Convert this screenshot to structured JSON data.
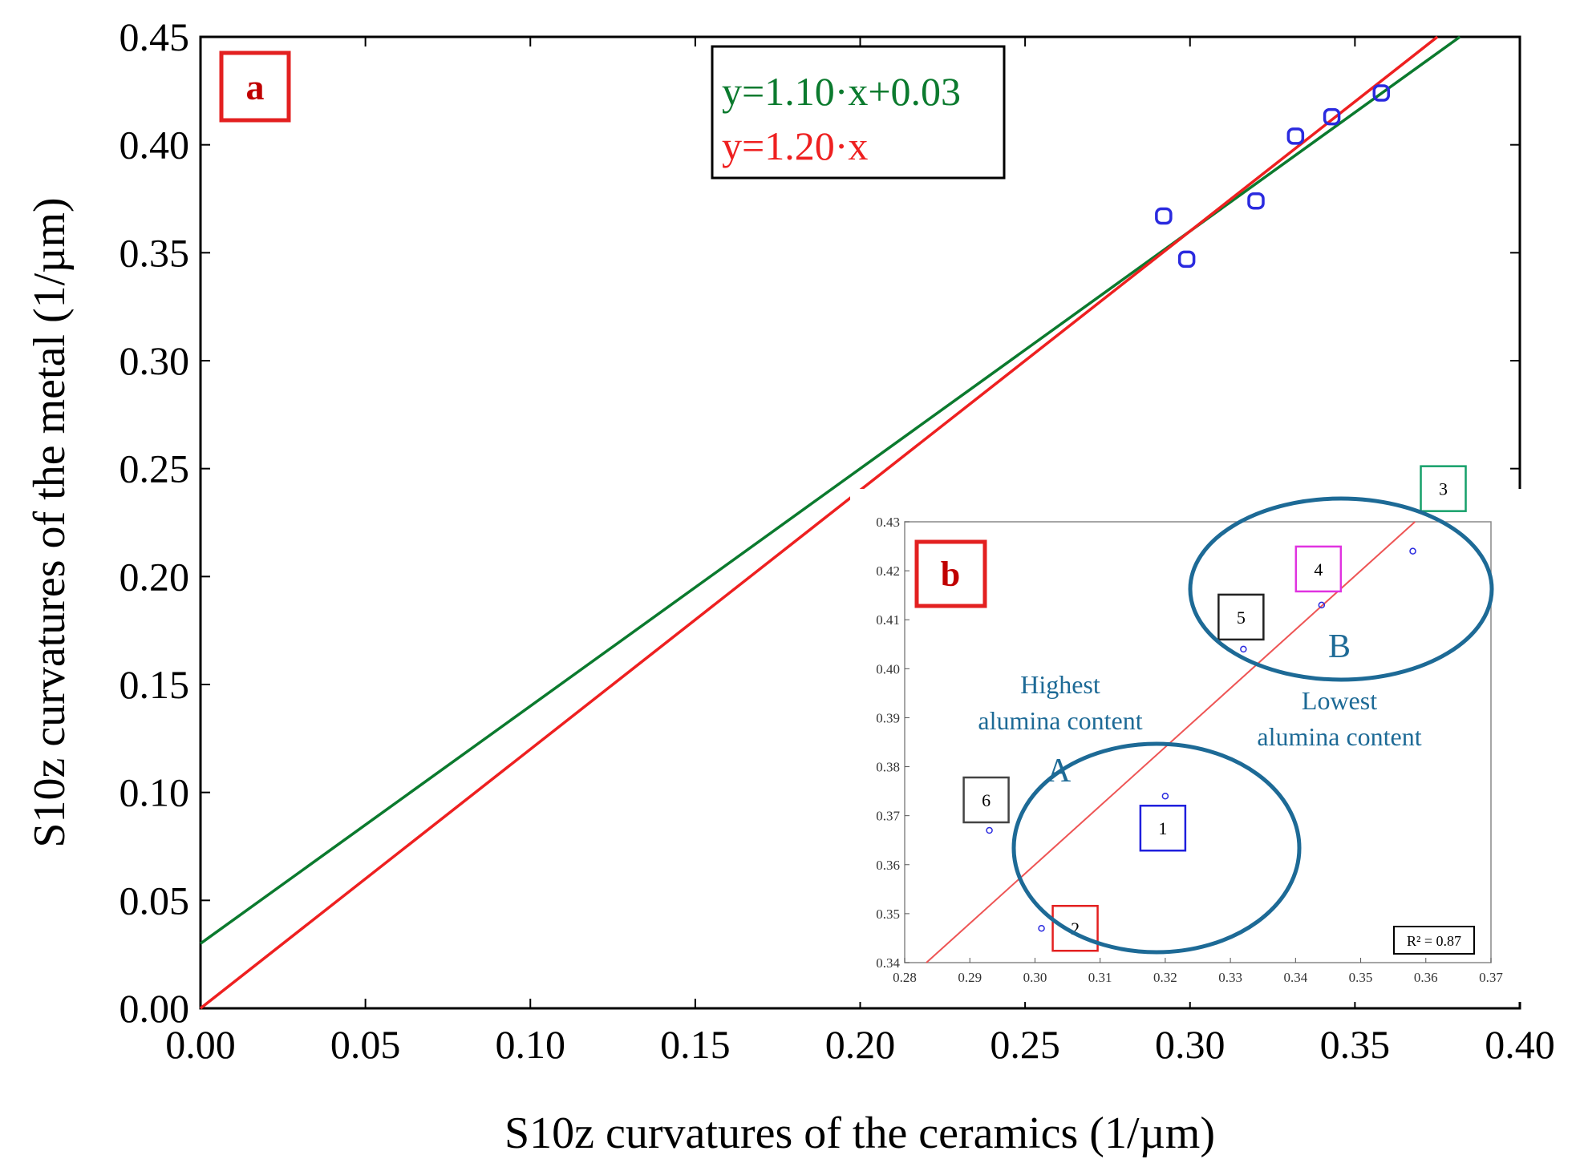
{
  "chart_data": {
    "type": "scatter",
    "panel_label": "a",
    "xlabel": "S10z curvatures of the ceramics (1/µm)",
    "ylabel": "S10z curvatures of the metal (1/µm)",
    "xlim": [
      0.0,
      0.4
    ],
    "ylim": [
      0.0,
      0.45
    ],
    "xticks": [
      "0.00",
      "0.05",
      "0.10",
      "0.15",
      "0.20",
      "0.25",
      "0.30",
      "0.35",
      "0.40"
    ],
    "yticks": [
      "0.00",
      "0.05",
      "0.10",
      "0.15",
      "0.20",
      "0.25",
      "0.30",
      "0.35",
      "0.40",
      "0.45"
    ],
    "points": [
      {
        "x": 0.292,
        "y": 0.367
      },
      {
        "x": 0.299,
        "y": 0.347
      },
      {
        "x": 0.32,
        "y": 0.374
      },
      {
        "x": 0.332,
        "y": 0.404
      },
      {
        "x": 0.343,
        "y": 0.413
      },
      {
        "x": 0.358,
        "y": 0.424
      }
    ],
    "lines": [
      {
        "label": "y=1.10·x+0.03",
        "slope": 1.1,
        "intercept": 0.03,
        "color": "#0b7a2e"
      },
      {
        "label": "y=1.20·x",
        "slope": 1.2,
        "intercept": 0.0,
        "color": "#ee2020"
      }
    ],
    "point_color": "#2a2adf",
    "inset": {
      "panel_label": "b",
      "xlim": [
        0.28,
        0.37
      ],
      "ylim": [
        0.34,
        0.43
      ],
      "xticks": [
        "0.28",
        "0.29",
        "0.30",
        "0.31",
        "0.32",
        "0.33",
        "0.34",
        "0.35",
        "0.36",
        "0.37"
      ],
      "yticks": [
        "0.34",
        "0.35",
        "0.36",
        "0.37",
        "0.38",
        "0.39",
        "0.40",
        "0.41",
        "0.42",
        "0.43"
      ],
      "fit": {
        "slope": 1.2,
        "intercept": 0.0,
        "color": "#ee5555"
      },
      "r2_label": "R² = 0.87",
      "points": [
        {
          "id": "1",
          "x": 0.32,
          "y": 0.374,
          "box_color": "#1f1fdd"
        },
        {
          "id": "2",
          "x": 0.301,
          "y": 0.347,
          "box_color": "#e32020"
        },
        {
          "id": "3",
          "x": 0.358,
          "y": 0.424,
          "box_color": "#16a06a"
        },
        {
          "id": "4",
          "x": 0.344,
          "y": 0.413,
          "box_color": "#e033e0"
        },
        {
          "id": "5",
          "x": 0.332,
          "y": 0.404,
          "box_color": "#222222"
        },
        {
          "id": "6",
          "x": 0.293,
          "y": 0.367,
          "box_color": "#444444"
        }
      ],
      "groups": [
        {
          "letter": "A",
          "label_lines": [
            "Highest",
            "alumina content"
          ]
        },
        {
          "letter": "B",
          "label_lines": [
            "Lowest",
            "alumina content"
          ]
        }
      ],
      "group_color": "#1d6a96"
    }
  }
}
